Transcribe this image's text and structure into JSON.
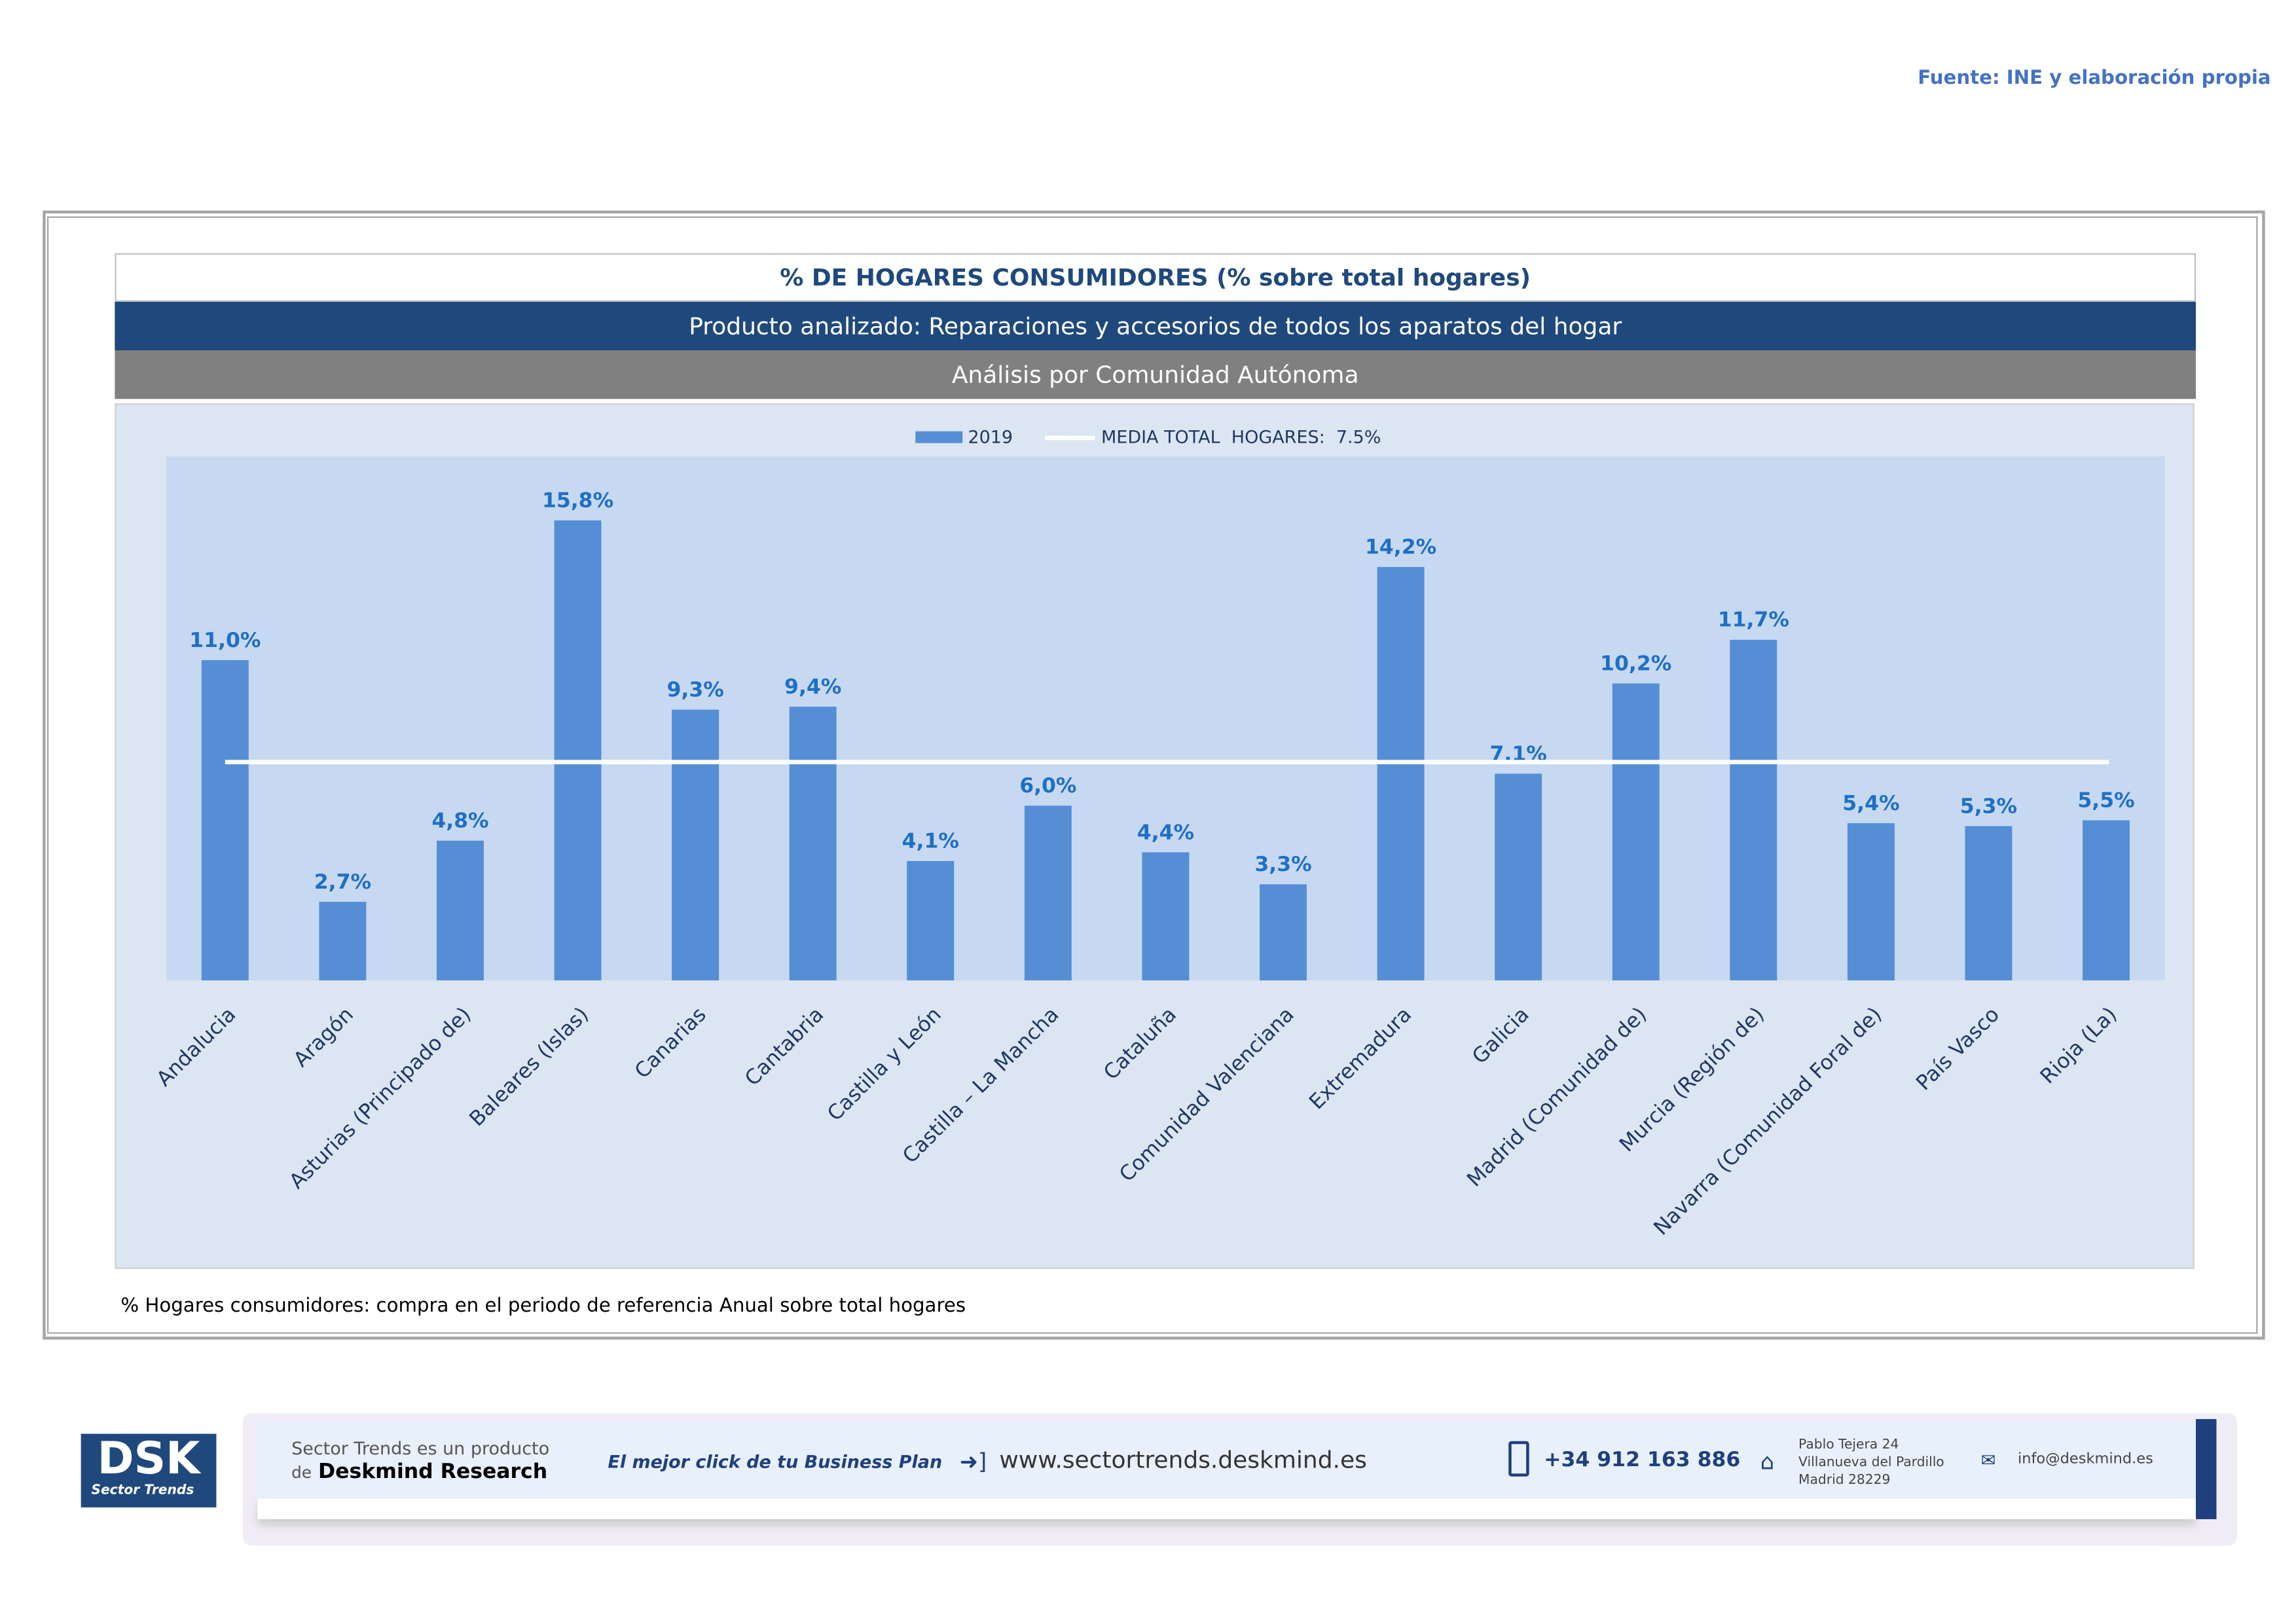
{
  "source": "Fuente: INE y elaboración propia",
  "header": {
    "title": "% DE HOGARES CONSUMIDORES (% sobre total hogares)",
    "product": "Producto analizado: Reparaciones y accesorios de todos los aparatos del hogar",
    "analysis": "Análisis por Comunidad Autónoma"
  },
  "footnote": "% Hogares consumidores: compra en el periodo de referencia Anual sobre total hogares",
  "colors": {
    "bar": "#558ed5",
    "title": "#1f497d",
    "label": "#1f6fc5",
    "plot": "#c6d9f1"
  },
  "chart_data": {
    "type": "bar",
    "title": "% DE HOGARES CONSUMIDORES (% sobre total hogares)",
    "categories": [
      "Andalucia",
      "Aragón",
      "Asturias (Principado de)",
      "Baleares (Islas)",
      "Canarias",
      "Cantabria",
      "Castilla y León",
      "Castilla – La Mancha",
      "Cataluña",
      "Comunidad Valenciana",
      "Extremadura",
      "Galicia",
      "Madrid (Comunidad de)",
      "Murcia (Región de)",
      "Navarra (Comunidad Foral de)",
      "País Vasco",
      "Rioja (La)"
    ],
    "series": [
      {
        "name": "2019",
        "values": [
          11.0,
          2.7,
          4.8,
          15.8,
          9.3,
          9.4,
          4.1,
          6.0,
          4.4,
          3.3,
          14.2,
          7.1,
          10.2,
          11.7,
          5.4,
          5.3,
          5.5
        ]
      }
    ],
    "data_labels": [
      "11,0%",
      "2,7%",
      "4,8%",
      "15,8%",
      "9,3%",
      "9,4%",
      "4,1%",
      "6,0%",
      "4,4%",
      "3,3%",
      "14,2%",
      "7,1%",
      "10,2%",
      "11,7%",
      "5,4%",
      "5,3%",
      "5,5%"
    ],
    "reference_line": {
      "name": "MEDIA TOTAL  HOGARES:  7.5%",
      "value": 7.5
    },
    "legend": [
      "2019",
      "MEDIA TOTAL  HOGARES:  7.5%"
    ],
    "legend_position": "top",
    "ylim": [
      0,
      18
    ],
    "grid": false
  },
  "footer": {
    "brand_line1": "Sector Trends es un producto",
    "brand_line2_prefix": "de",
    "brand_line2": "Deskmind Research",
    "slogan": "El mejor click de tu Business Plan",
    "website": "www.sectortrends.deskmind.es",
    "phone": "+34 912 163 886",
    "address1": "Pablo Tejera 24",
    "address2": "Villanueva del Pardillo",
    "address3": "Madrid 28229",
    "email": "info@deskmind.es",
    "logo_text": "DSK",
    "logo_sub": "Sector Trends"
  }
}
